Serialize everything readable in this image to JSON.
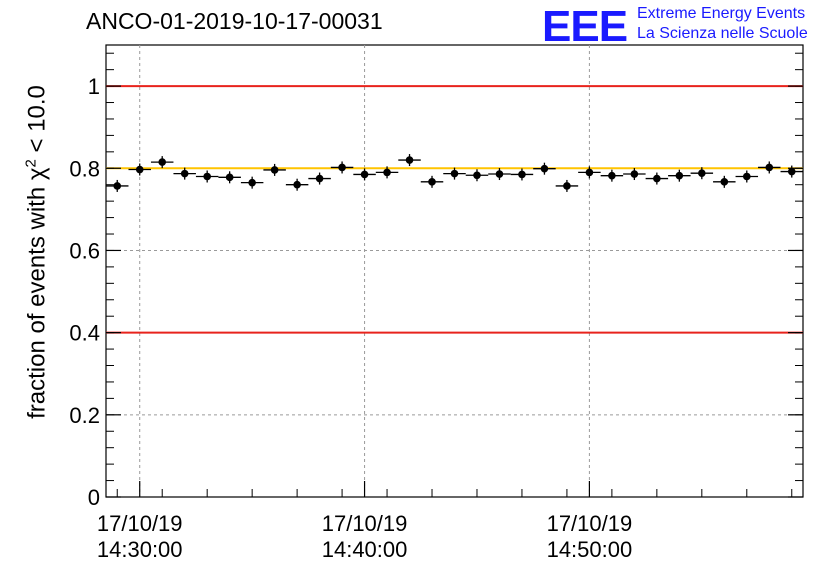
{
  "chart_data": {
    "type": "scatter",
    "title": "ANCO-01-2019-10-17-00031",
    "ylabel": "fraction of events with",
    "ylabel_symbol": "χ",
    "ylabel_exp": "2",
    "ylabel_tail": "< 10.0",
    "xlabel": "",
    "ylim": [
      0,
      1.1
    ],
    "yticks": [
      {
        "v": 0,
        "label": "0"
      },
      {
        "v": 0.2,
        "label": "0.2"
      },
      {
        "v": 0.4,
        "label": "0.4"
      },
      {
        "v": 0.6,
        "label": "0.6"
      },
      {
        "v": 0.8,
        "label": "0.8"
      },
      {
        "v": 1.0,
        "label": "1"
      }
    ],
    "xlim_minutes": [
      -1.5,
      29.5
    ],
    "xticks": [
      {
        "m": 0,
        "date": "17/10/19",
        "time": "14:30:00"
      },
      {
        "m": 10,
        "date": "17/10/19",
        "time": "14:40:00"
      },
      {
        "m": 20,
        "date": "17/10/19",
        "time": "14:50:00"
      }
    ],
    "bin_width_minutes": 1,
    "x": [
      -1,
      0,
      1,
      2,
      3,
      4,
      5,
      6,
      7,
      8,
      9,
      10,
      11,
      12,
      13,
      14,
      15,
      16,
      17,
      18,
      19,
      20,
      21,
      22,
      23,
      24,
      25,
      26,
      27,
      28,
      29
    ],
    "values": [
      0.757,
      0.797,
      0.815,
      0.787,
      0.78,
      0.778,
      0.765,
      0.796,
      0.76,
      0.775,
      0.802,
      0.785,
      0.79,
      0.82,
      0.767,
      0.787,
      0.783,
      0.786,
      0.785,
      0.799,
      0.757,
      0.79,
      0.782,
      0.786,
      0.775,
      0.782,
      0.788,
      0.767,
      0.78,
      0.802,
      0.792
    ],
    "reference_lines": [
      {
        "y": 1.0,
        "color": "#e8231c"
      },
      {
        "y": 0.4,
        "color": "#e8231c"
      },
      {
        "y": 0.8,
        "color": "#ffc400"
      }
    ]
  },
  "logo": {
    "mark": "EEE",
    "line1": "Extreme Energy Events",
    "line2": "La Scienza nelle Scuole",
    "color": "#1a1aff"
  }
}
